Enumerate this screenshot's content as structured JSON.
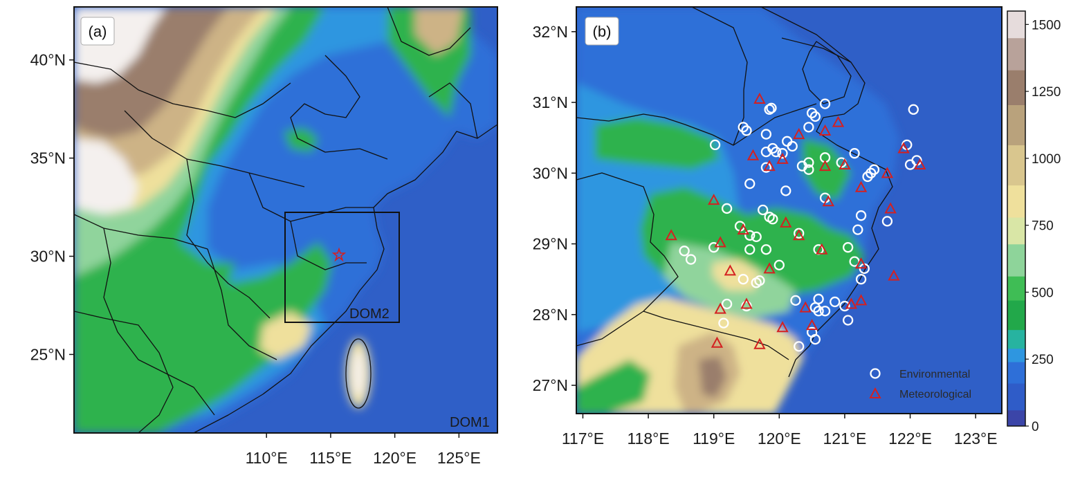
{
  "panel_a": {
    "tag": "(a)",
    "lat_ticks": [
      {
        "label": "40°N",
        "value": 40
      },
      {
        "label": "35°N",
        "value": 35
      },
      {
        "label": "30°N",
        "value": 30
      },
      {
        "label": "25°N",
        "value": 25
      }
    ],
    "lon_ticks": [
      {
        "label": "110°E",
        "value": 110
      },
      {
        "label": "115°E",
        "value": 115
      },
      {
        "label": "120°E",
        "value": 120
      },
      {
        "label": "125°E",
        "value": 125
      }
    ],
    "extent": {
      "lon": [
        95.0,
        128.0
      ],
      "lat": [
        21.0,
        42.7
      ]
    },
    "inner_box_label": "DOM2",
    "domain_label": "DOM1"
  },
  "panel_b": {
    "tag": "(b)",
    "lat_ticks": [
      {
        "label": "32°N",
        "value": 32
      },
      {
        "label": "31°N",
        "value": 31
      },
      {
        "label": "30°N",
        "value": 30
      },
      {
        "label": "29°N",
        "value": 29
      },
      {
        "label": "28°N",
        "value": 28
      },
      {
        "label": "27°N",
        "value": 27
      }
    ],
    "lon_ticks": [
      {
        "label": "117°E",
        "value": 117
      },
      {
        "label": "118°E",
        "value": 118
      },
      {
        "label": "119°E",
        "value": 119
      },
      {
        "label": "120°E",
        "value": 120
      },
      {
        "label": "121°E",
        "value": 121
      },
      {
        "label": "122°E",
        "value": 122
      },
      {
        "label": "123°E",
        "value": 123
      }
    ],
    "extent": {
      "lon": [
        116.9,
        123.4
      ],
      "lat": [
        26.6,
        32.35
      ]
    },
    "legend": [
      {
        "label": "Environmental",
        "marker": "circle",
        "color": "#ffffff"
      },
      {
        "label": "Meteorological",
        "marker": "triangle",
        "color": "#d42020"
      }
    ]
  },
  "colorbar": {
    "ticks": [
      {
        "label": "1500",
        "value": 1500
      },
      {
        "label": "1250",
        "value": 1250
      },
      {
        "label": "1000",
        "value": 1000
      },
      {
        "label": "750",
        "value": 750
      },
      {
        "label": "500",
        "value": 500
      },
      {
        "label": "250",
        "value": 250
      },
      {
        "label": "0",
        "value": 0
      }
    ],
    "range": [
      0,
      1550
    ],
    "stops": [
      {
        "value": 0,
        "color": "#3b45a8"
      },
      {
        "value": 60,
        "color": "#2f5cc8"
      },
      {
        "value": 160,
        "color": "#2e6fd8"
      },
      {
        "value": 240,
        "color": "#2e96e0"
      },
      {
        "value": 290,
        "color": "#27b3a0"
      },
      {
        "value": 360,
        "color": "#22a84a"
      },
      {
        "value": 470,
        "color": "#3fbd55"
      },
      {
        "value": 560,
        "color": "#8ed49a"
      },
      {
        "value": 680,
        "color": "#d9e6a6"
      },
      {
        "value": 780,
        "color": "#efe09c"
      },
      {
        "value": 900,
        "color": "#d9c68e"
      },
      {
        "value": 1050,
        "color": "#b9a27c"
      },
      {
        "value": 1200,
        "color": "#9a7e6c"
      },
      {
        "value": 1330,
        "color": "#b8a29a"
      },
      {
        "value": 1450,
        "color": "#e6dcdc"
      },
      {
        "value": 1550,
        "color": "#ffffff"
      }
    ]
  },
  "colors": {
    "ocean": "#2f5fc7",
    "plain": "#2e6fd8",
    "lowland": "#2e96e0",
    "hills_green": "#2db24e",
    "light_green": "#90d49c",
    "yellow": "#efe09c",
    "tan": "#cdb386",
    "brown": "#9a7e6c",
    "white_peak": "#f4f0ee",
    "boundary": "#111111",
    "station_env": "#ffffff",
    "station_met": "#d42020"
  },
  "stations": {
    "environmental": [
      [
        119.85,
        30.9
      ],
      [
        119.88,
        30.92
      ],
      [
        120.5,
        30.85
      ],
      [
        120.55,
        30.8
      ],
      [
        120.7,
        30.98
      ],
      [
        120.45,
        30.65
      ],
      [
        119.45,
        30.65
      ],
      [
        119.5,
        30.6
      ],
      [
        119.8,
        30.55
      ],
      [
        119.02,
        30.4
      ],
      [
        119.8,
        30.3
      ],
      [
        119.9,
        30.35
      ],
      [
        119.95,
        30.3
      ],
      [
        120.05,
        30.28
      ],
      [
        120.12,
        30.45
      ],
      [
        120.2,
        30.38
      ],
      [
        120.35,
        30.1
      ],
      [
        120.45,
        30.05
      ],
      [
        120.45,
        30.15
      ],
      [
        120.7,
        30.22
      ],
      [
        120.95,
        30.15
      ],
      [
        121.15,
        30.28
      ],
      [
        121.35,
        29.95
      ],
      [
        121.4,
        30.0
      ],
      [
        121.45,
        30.05
      ],
      [
        122.0,
        30.12
      ],
      [
        122.1,
        30.18
      ],
      [
        121.95,
        30.4
      ],
      [
        122.05,
        30.9
      ],
      [
        119.8,
        30.08
      ],
      [
        120.1,
        29.75
      ],
      [
        120.7,
        29.65
      ],
      [
        119.55,
        29.85
      ],
      [
        119.2,
        29.5
      ],
      [
        119.75,
        29.48
      ],
      [
        119.85,
        29.38
      ],
      [
        119.9,
        29.35
      ],
      [
        119.55,
        29.12
      ],
      [
        119.4,
        29.25
      ],
      [
        119.65,
        29.1
      ],
      [
        119.0,
        28.95
      ],
      [
        118.55,
        28.9
      ],
      [
        118.65,
        28.78
      ],
      [
        119.55,
        28.92
      ],
      [
        119.8,
        28.92
      ],
      [
        120.3,
        29.15
      ],
      [
        120.6,
        28.92
      ],
      [
        121.05,
        28.95
      ],
      [
        121.2,
        29.2
      ],
      [
        121.25,
        29.4
      ],
      [
        121.65,
        29.32
      ],
      [
        121.15,
        28.75
      ],
      [
        121.3,
        28.65
      ],
      [
        120.0,
        28.7
      ],
      [
        119.65,
        28.45
      ],
      [
        119.7,
        28.48
      ],
      [
        119.45,
        28.5
      ],
      [
        119.2,
        28.15
      ],
      [
        119.5,
        28.12
      ],
      [
        120.25,
        28.2
      ],
      [
        120.55,
        28.1
      ],
      [
        120.6,
        28.05
      ],
      [
        120.7,
        28.05
      ],
      [
        120.85,
        28.18
      ],
      [
        121.0,
        28.12
      ],
      [
        121.25,
        28.5
      ],
      [
        120.6,
        28.22
      ],
      [
        120.5,
        27.75
      ],
      [
        120.55,
        27.65
      ],
      [
        120.3,
        27.55
      ],
      [
        119.15,
        27.88
      ],
      [
        121.05,
        27.92
      ]
    ],
    "meteorological": [
      [
        119.7,
        31.05
      ],
      [
        120.7,
        30.6
      ],
      [
        120.9,
        30.72
      ],
      [
        120.3,
        30.55
      ],
      [
        119.6,
        30.25
      ],
      [
        120.05,
        30.2
      ],
      [
        119.85,
        30.1
      ],
      [
        120.7,
        30.1
      ],
      [
        121.0,
        30.12
      ],
      [
        121.25,
        29.8
      ],
      [
        121.65,
        30.0
      ],
      [
        121.9,
        30.35
      ],
      [
        122.15,
        30.12
      ],
      [
        120.75,
        29.6
      ],
      [
        119.0,
        29.62
      ],
      [
        119.45,
        29.2
      ],
      [
        118.35,
        29.12
      ],
      [
        119.1,
        29.02
      ],
      [
        120.1,
        29.3
      ],
      [
        120.3,
        29.12
      ],
      [
        120.65,
        28.92
      ],
      [
        121.25,
        28.72
      ],
      [
        121.25,
        28.2
      ],
      [
        121.1,
        28.15
      ],
      [
        121.7,
        29.5
      ],
      [
        121.75,
        28.55
      ],
      [
        119.25,
        28.62
      ],
      [
        119.1,
        28.08
      ],
      [
        119.5,
        28.15
      ],
      [
        120.05,
        27.82
      ],
      [
        119.05,
        27.6
      ],
      [
        119.7,
        27.58
      ],
      [
        120.5,
        27.85
      ],
      [
        120.4,
        28.1
      ],
      [
        119.85,
        28.65
      ]
    ]
  }
}
